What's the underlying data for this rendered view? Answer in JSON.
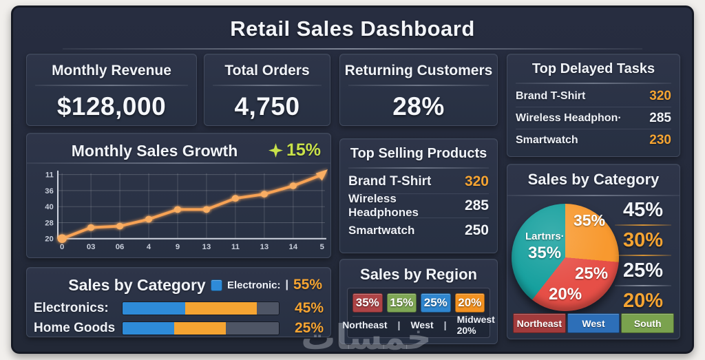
{
  "title": "Retail Sales Dashboard",
  "watermark": "خمسات",
  "colors": {
    "accent_orange": "#F5A432",
    "badge_green": "#C9E24A",
    "text_white": "#F2F5FA",
    "blue": "#2E8BD8",
    "bar_gray": "#4E5565",
    "line_orange": "#F7A254"
  },
  "kpis": [
    {
      "label": "Monthly Revenue",
      "value": "$128,000"
    },
    {
      "label": "Total Orders",
      "value": "4,750"
    },
    {
      "label": "Returning Customers",
      "value": "28%"
    }
  ],
  "delayed_tasks": {
    "title": "Top Delayed Tasks",
    "rows": [
      {
        "name": "Brand T-Shirt",
        "value": "320",
        "value_color": "#F5A432"
      },
      {
        "name": "Wireless Headphon·",
        "value": "285",
        "value_color": "#F2F5FA"
      },
      {
        "name": "Smartwatch",
        "value": "230",
        "value_color": "#F5A432"
      }
    ]
  },
  "top_products": {
    "title": "Top Selling Products",
    "rows": [
      {
        "name": "Brand T-Shirt",
        "value": "320",
        "value_color": "#F5A432"
      },
      {
        "name": "Wireless Headphones",
        "value": "285",
        "value_color": "#F2F5FA"
      },
      {
        "name": "Smartwatch",
        "value": "250",
        "value_color": "#F2F5FA"
      }
    ]
  },
  "growth": {
    "badge_value": "15%"
  },
  "chart_data": [
    {
      "id": "monthly_sales_growth",
      "type": "line",
      "title": "Monthly Sales Growth",
      "badge": "+15%",
      "x_tick_labels": [
        "0",
        "03",
        "06",
        "4",
        "9",
        "13",
        "11",
        "13",
        "14",
        "5"
      ],
      "y_tick_labels_top_to_bottom": [
        "11",
        "36",
        "40",
        "28",
        "20"
      ],
      "values": [
        20,
        24,
        24.5,
        27,
        30.5,
        30.5,
        34.5,
        36,
        39,
        43
      ],
      "y_range": [
        20,
        44
      ],
      "grid": true,
      "line_color": "#F7A254",
      "marker_color": "#F9AE63"
    },
    {
      "id": "sales_by_category_pie",
      "type": "pie",
      "title": "Sales by Category",
      "slices": [
        {
          "label": "",
          "value_label": "35%",
          "color": "#F8992F",
          "start_deg": 0,
          "end_deg": 95
        },
        {
          "label": "",
          "value_label": "25%",
          "value_label_2": "20%",
          "color": "#E64F47",
          "start_deg": 95,
          "end_deg": 218
        },
        {
          "label": "Lartnrs·",
          "value_label": "35%",
          "color": "#16A09E",
          "start_deg": 218,
          "end_deg": 360
        }
      ],
      "side_values": [
        {
          "value": "45%",
          "color": "#F2F5FA"
        },
        {
          "value": "30%",
          "color": "#F5A432"
        },
        {
          "value": "25%",
          "color": "#F2F5FA"
        },
        {
          "value": "20%",
          "color": "#F5A432"
        }
      ],
      "legend": [
        {
          "label": "Northeast",
          "color": "#A23B3C"
        },
        {
          "label": "West",
          "color": "#2D6FB8"
        },
        {
          "label": "South",
          "color": "#7AA24E"
        }
      ]
    },
    {
      "id": "sales_by_category_bars",
      "type": "bar",
      "title": "Sales by Category",
      "legend": {
        "label": "Electronic:",
        "divider": "|",
        "value": "55%",
        "swatch_color": "#2E8BD8"
      },
      "rows": [
        {
          "label": "Electronics:",
          "value": "45%",
          "segments": [
            {
              "color": "#2E8BD8",
              "pct": 40
            },
            {
              "color": "#F5A432",
              "pct": 46
            },
            {
              "color": "#4E5565",
              "pct": 14
            }
          ]
        },
        {
          "label": "Home Goods",
          "value": "25%",
          "segments": [
            {
              "color": "#2E8BD8",
              "pct": 33
            },
            {
              "color": "#F5A432",
              "pct": 33
            },
            {
              "color": "#4E5565",
              "pct": 34
            }
          ]
        }
      ]
    },
    {
      "id": "sales_by_region",
      "type": "table",
      "title": "Sales by Region",
      "boxes": [
        {
          "value": "35%",
          "color": "#AE4446"
        },
        {
          "value": "15%",
          "color": "#7FA755"
        },
        {
          "value": "25%",
          "color": "#2F86CF"
        },
        {
          "value": "20%",
          "color": "#F39221"
        }
      ],
      "footer_items": [
        "Northeast",
        "West",
        "Midwest 20%"
      ],
      "footer_divider": "|"
    }
  ]
}
